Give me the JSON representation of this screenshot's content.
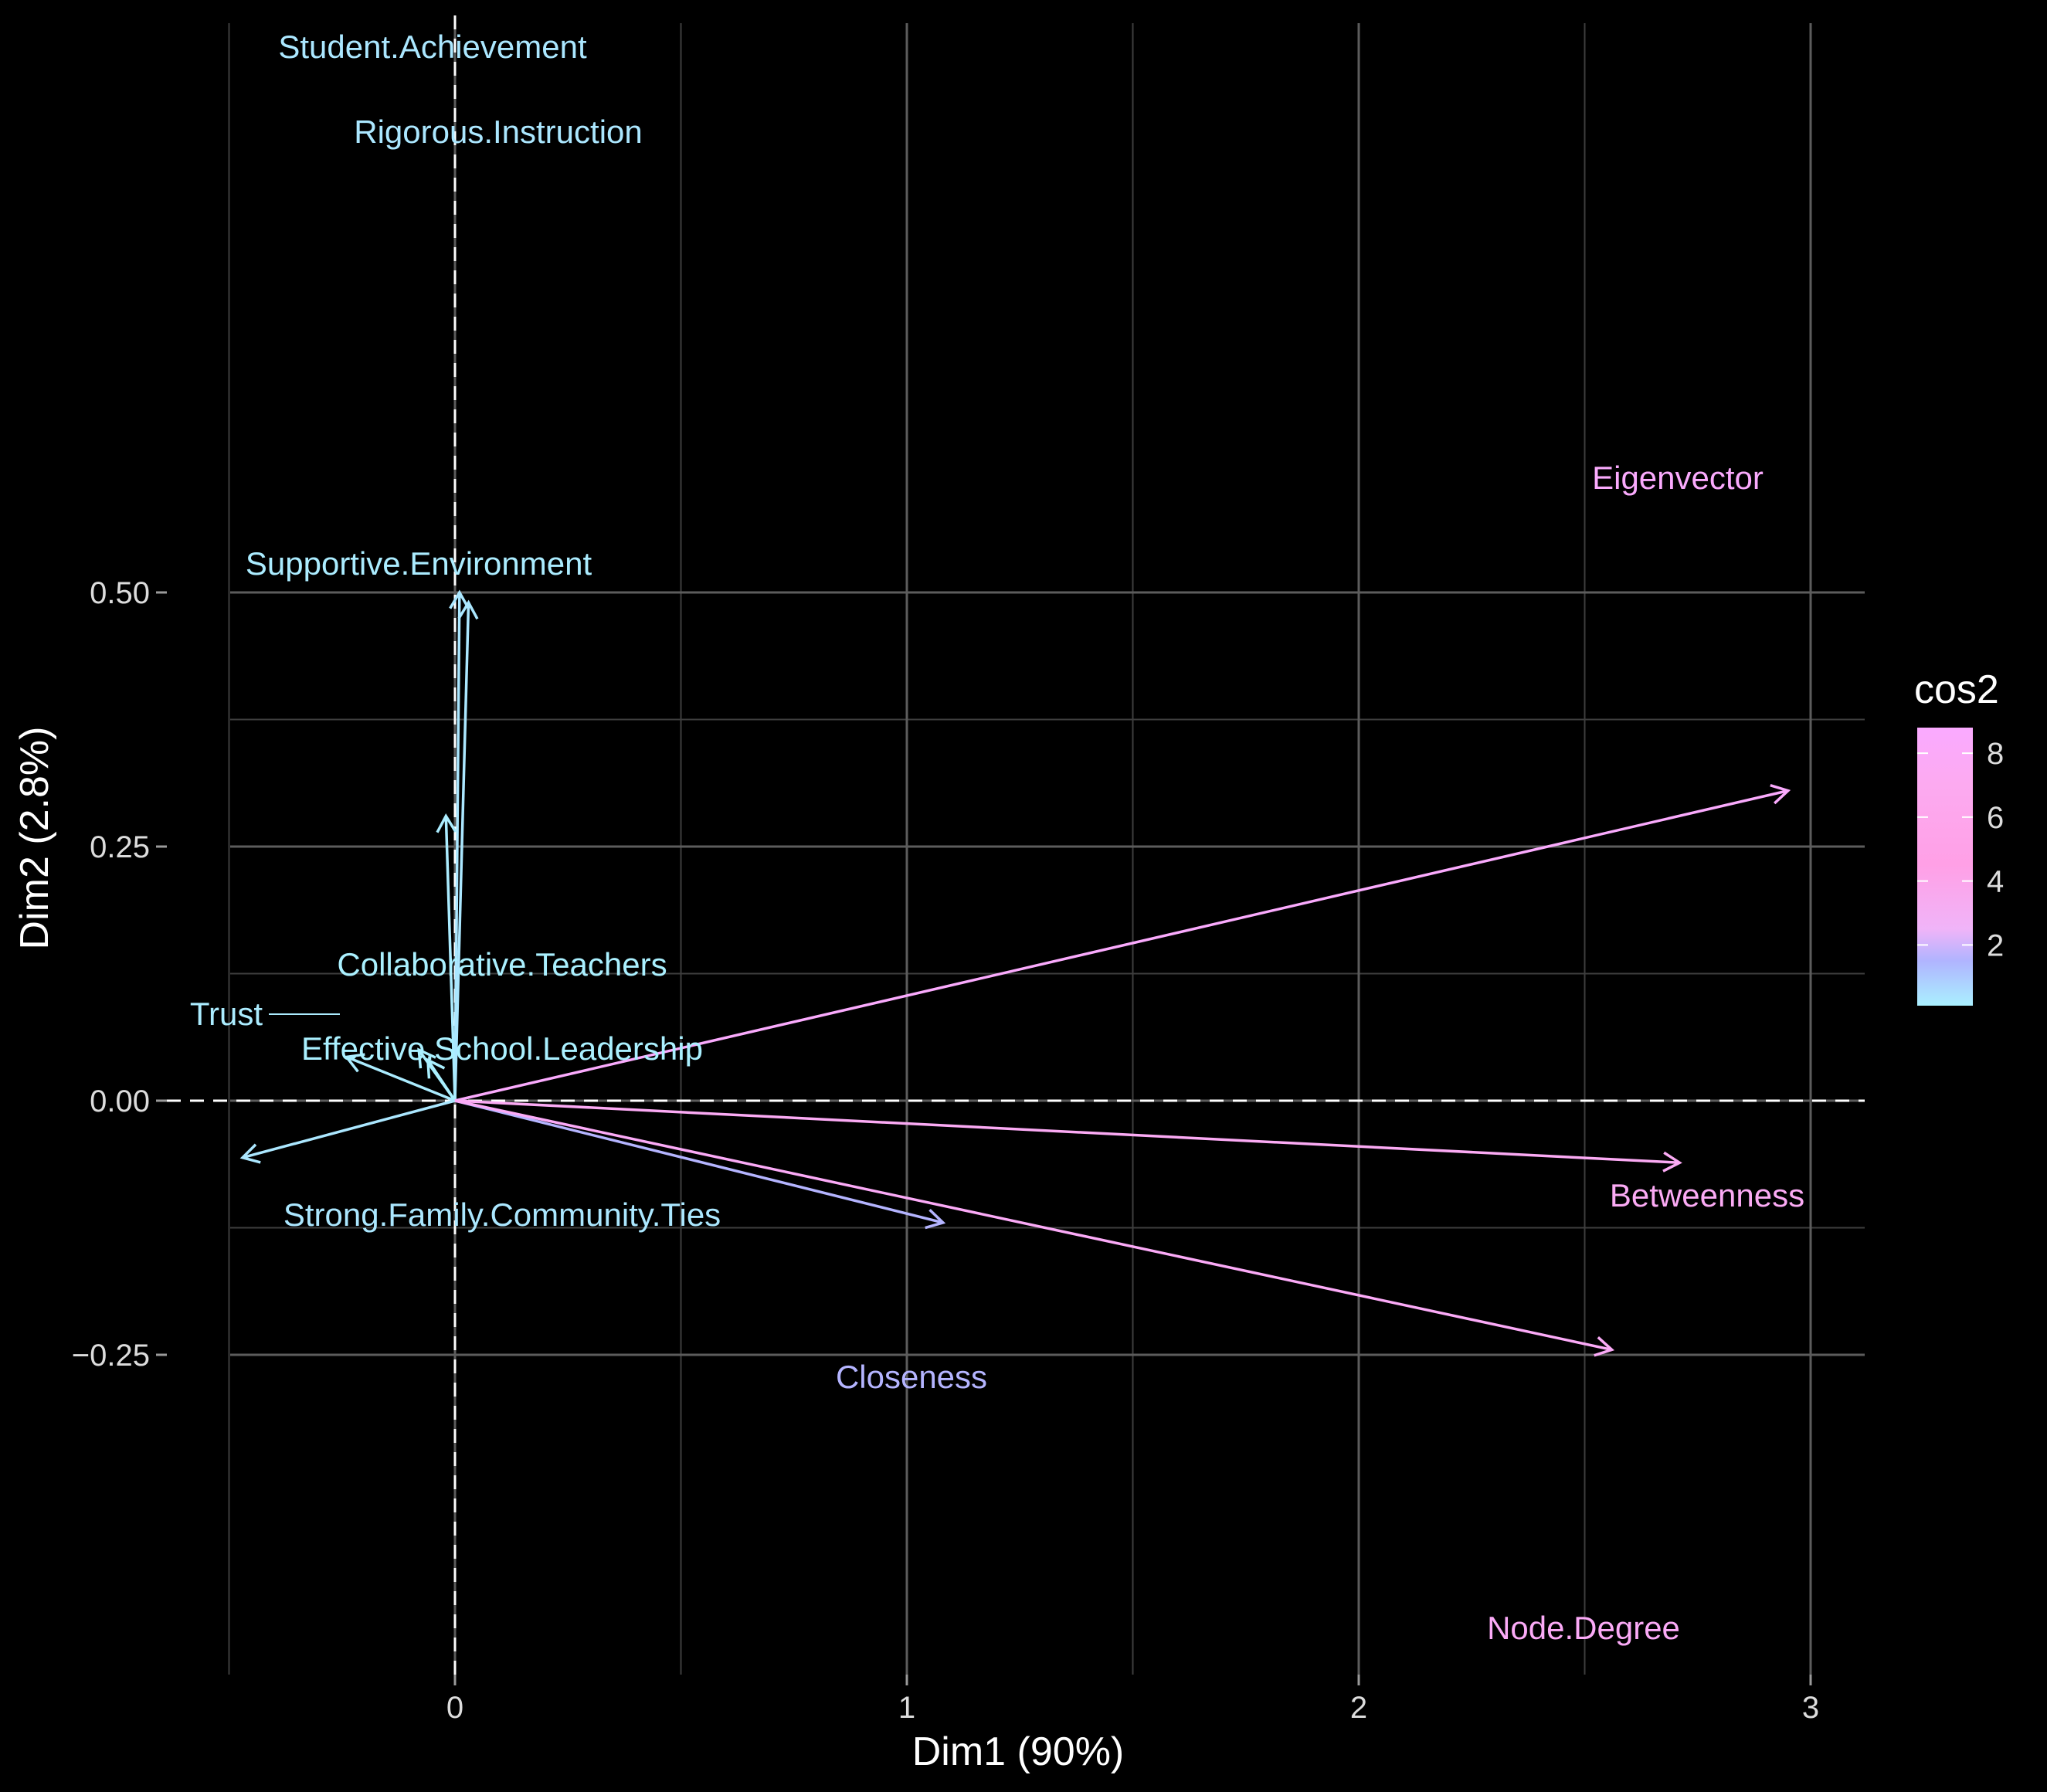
{
  "chart_data": {
    "type": "pca-variable-correlation",
    "xlabel": "Dim1 (90%)",
    "ylabel": "Dim2 (2.8%)",
    "xlim": [
      -0.5,
      3.1
    ],
    "ylim": [
      -0.28,
      0.52
    ],
    "x_ticks": [
      0,
      1,
      2,
      3
    ],
    "x_tick_labels": [
      "0",
      "1",
      "2",
      "3"
    ],
    "y_ticks": [
      -0.25,
      0.0,
      0.25,
      0.5
    ],
    "y_tick_labels": [
      "−0.25",
      "0.00",
      "0.25",
      "0.50"
    ],
    "grid": true,
    "background": "#000000",
    "legend": {
      "title": "cos2",
      "position": "right",
      "ticks": [
        2,
        4,
        6,
        8
      ],
      "tick_labels": [
        "2",
        "4",
        "6",
        "8"
      ],
      "range": [
        0.1,
        8.8
      ],
      "colors": [
        "#aaf0ff",
        "#b0b4ff",
        "#f0b4f8",
        "#ffa0e6",
        "#fcaaf0",
        "#faaaff"
      ]
    },
    "variables": [
      {
        "name": "Student.Achievement",
        "x": 0.01,
        "y": 0.5,
        "cos2": 0.3
      },
      {
        "name": "Rigorous.Instruction",
        "x": 0.03,
        "y": 0.49,
        "cos2": 0.3
      },
      {
        "name": "Supportive.Environment",
        "x": -0.02,
        "y": 0.28,
        "cos2": 0.2
      },
      {
        "name": "Collaborative.Teachers",
        "x": -0.08,
        "y": 0.05,
        "cos2": 0.1
      },
      {
        "name": "Trust",
        "x": -0.24,
        "y": 0.043,
        "cos2": 0.2
      },
      {
        "name": "Effective.School.Leadership",
        "x": -0.06,
        "y": 0.04,
        "cos2": 0.1
      },
      {
        "name": "Strong.Family.Community.Ties",
        "x": -0.47,
        "y": -0.056,
        "cos2": 0.3
      },
      {
        "name": "Closeness",
        "x": 1.08,
        "y": -0.12,
        "cos2": 1.5
      },
      {
        "name": "Eigenvector",
        "x": 2.95,
        "y": 0.305,
        "cos2": 8.6
      },
      {
        "name": "Betweenness",
        "x": 2.71,
        "y": -0.061,
        "cos2": 7.5
      },
      {
        "name": "Node.Degree",
        "x": 2.56,
        "y": -0.245,
        "cos2": 7.8
      }
    ]
  }
}
